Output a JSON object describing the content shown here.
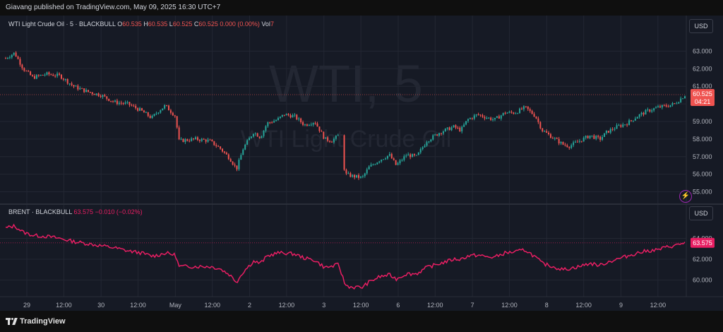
{
  "header": {
    "publish_text": "Giavang published on TradingView.com, May 09, 2025 16:30 UTC+7"
  },
  "footer": {
    "brand": "TradingView"
  },
  "colors": {
    "bg": "#161a25",
    "up": "#26a69a",
    "down": "#ef5350",
    "brent": "#e91e63",
    "grid": "#232733",
    "text": "#b2b5be"
  },
  "top_pane": {
    "legend": {
      "symbol": "WTI Light Crude Oil · 5 · BLACKBULL",
      "o_label": "O",
      "o": "60.535",
      "h_label": "H",
      "h": "60.535",
      "l_label": "L",
      "l": "60.525",
      "c_label": "C",
      "c": "60.525",
      "change": "0.000 (0.00%)",
      "vol_label": "Vol",
      "vol": "7"
    },
    "watermark_big": "WTI, 5",
    "watermark_small": "WTI Light Crude Oil",
    "currency": "USD",
    "price_tag": "60.525",
    "countdown": "04:21",
    "icon": "lightning-icon"
  },
  "bottom_pane": {
    "legend": {
      "symbol": "BRENT · BLACKBULL",
      "value": "63.575",
      "change": "−0.010 (−0.02%)"
    },
    "currency": "USD",
    "price_tag": "63.575"
  },
  "chart_data": [
    {
      "type": "candlestick",
      "title": "WTI Light Crude Oil · 5 · BLACKBULL",
      "ylim": [
        54.5,
        63.9
      ],
      "y_ticks": [
        "55.000",
        "56.000",
        "57.000",
        "58.000",
        "59.000",
        "60.000",
        "61.000",
        "62.000",
        "63.000"
      ],
      "close_path": [
        [
          0,
          62.6
        ],
        [
          0.013,
          62.9
        ],
        [
          0.026,
          62.0
        ],
        [
          0.04,
          61.5
        ],
        [
          0.06,
          61.7
        ],
        [
          0.08,
          61.6
        ],
        [
          0.1,
          61.0
        ],
        [
          0.12,
          60.7
        ],
        [
          0.14,
          60.5
        ],
        [
          0.16,
          60.1
        ],
        [
          0.18,
          60.0
        ],
        [
          0.2,
          59.6
        ],
        [
          0.215,
          59.2
        ],
        [
          0.225,
          59.6
        ],
        [
          0.235,
          59.9
        ],
        [
          0.25,
          59.3
        ],
        [
          0.255,
          57.9
        ],
        [
          0.28,
          58.0
        ],
        [
          0.3,
          57.9
        ],
        [
          0.315,
          57.5
        ],
        [
          0.33,
          56.9
        ],
        [
          0.34,
          56.3
        ],
        [
          0.35,
          57.5
        ],
        [
          0.365,
          58.4
        ],
        [
          0.375,
          58.1
        ],
        [
          0.385,
          58.9
        ],
        [
          0.4,
          59.1
        ],
        [
          0.41,
          59.4
        ],
        [
          0.425,
          59.3
        ],
        [
          0.44,
          58.8
        ],
        [
          0.455,
          59.0
        ],
        [
          0.47,
          58.0
        ],
        [
          0.48,
          57.9
        ],
        [
          0.49,
          58.2
        ],
        [
          0.5,
          56.0
        ],
        [
          0.51,
          55.9
        ],
        [
          0.525,
          55.8
        ],
        [
          0.535,
          56.4
        ],
        [
          0.55,
          56.8
        ],
        [
          0.565,
          57.1
        ],
        [
          0.575,
          56.5
        ],
        [
          0.59,
          57.1
        ],
        [
          0.605,
          57.0
        ],
        [
          0.62,
          57.9
        ],
        [
          0.64,
          58.4
        ],
        [
          0.66,
          58.7
        ],
        [
          0.67,
          58.5
        ],
        [
          0.68,
          59.1
        ],
        [
          0.695,
          59.4
        ],
        [
          0.71,
          59.2
        ],
        [
          0.72,
          59.1
        ],
        [
          0.735,
          59.5
        ],
        [
          0.75,
          59.5
        ],
        [
          0.765,
          59.8
        ],
        [
          0.78,
          59.3
        ],
        [
          0.79,
          58.5
        ],
        [
          0.805,
          58.1
        ],
        [
          0.82,
          57.7
        ],
        [
          0.83,
          57.6
        ],
        [
          0.845,
          57.9
        ],
        [
          0.86,
          58.2
        ],
        [
          0.875,
          58.0
        ],
        [
          0.885,
          58.4
        ],
        [
          0.9,
          58.7
        ],
        [
          0.915,
          58.9
        ],
        [
          0.93,
          59.3
        ],
        [
          0.945,
          59.6
        ],
        [
          0.96,
          59.8
        ],
        [
          0.975,
          59.9
        ],
        [
          0.985,
          60.0
        ],
        [
          1,
          60.5
        ]
      ]
    },
    {
      "type": "line",
      "title": "BRENT · BLACKBULL",
      "ylim": [
        58.8,
        65.6
      ],
      "y_ticks": [
        "60.000",
        "62.000",
        "64.000"
      ],
      "series": [
        {
          "name": "BRENT · BLACKBULL",
          "values": [
            [
              0,
              65.0
            ],
            [
              0.013,
              65.2
            ],
            [
              0.026,
              64.6
            ],
            [
              0.04,
              64.3
            ],
            [
              0.06,
              64.2
            ],
            [
              0.08,
              64.0
            ],
            [
              0.1,
              63.7
            ],
            [
              0.12,
              63.5
            ],
            [
              0.14,
              63.3
            ],
            [
              0.16,
              63.1
            ],
            [
              0.18,
              62.8
            ],
            [
              0.2,
              62.6
            ],
            [
              0.215,
              62.3
            ],
            [
              0.225,
              62.4
            ],
            [
              0.235,
              62.6
            ],
            [
              0.25,
              62.4
            ],
            [
              0.255,
              61.3
            ],
            [
              0.28,
              61.3
            ],
            [
              0.3,
              61.3
            ],
            [
              0.315,
              61.1
            ],
            [
              0.33,
              60.5
            ],
            [
              0.34,
              59.8
            ],
            [
              0.35,
              60.8
            ],
            [
              0.365,
              61.8
            ],
            [
              0.375,
              61.6
            ],
            [
              0.385,
              62.3
            ],
            [
              0.4,
              62.6
            ],
            [
              0.41,
              62.6
            ],
            [
              0.425,
              62.5
            ],
            [
              0.44,
              62.1
            ],
            [
              0.455,
              61.9
            ],
            [
              0.47,
              61.2
            ],
            [
              0.48,
              61.3
            ],
            [
              0.49,
              61.5
            ],
            [
              0.5,
              59.5
            ],
            [
              0.51,
              59.3
            ],
            [
              0.525,
              59.3
            ],
            [
              0.535,
              59.8
            ],
            [
              0.55,
              60.3
            ],
            [
              0.565,
              60.5
            ],
            [
              0.575,
              60.1
            ],
            [
              0.59,
              60.6
            ],
            [
              0.605,
              60.6
            ],
            [
              0.62,
              61.2
            ],
            [
              0.64,
              61.6
            ],
            [
              0.66,
              62.0
            ],
            [
              0.67,
              62.0
            ],
            [
              0.68,
              62.3
            ],
            [
              0.695,
              62.4
            ],
            [
              0.71,
              62.2
            ],
            [
              0.72,
              62.2
            ],
            [
              0.735,
              62.6
            ],
            [
              0.75,
              62.7
            ],
            [
              0.765,
              62.9
            ],
            [
              0.78,
              62.2
            ],
            [
              0.79,
              61.6
            ],
            [
              0.805,
              61.3
            ],
            [
              0.82,
              61.0
            ],
            [
              0.83,
              61.1
            ],
            [
              0.845,
              61.3
            ],
            [
              0.86,
              61.6
            ],
            [
              0.875,
              61.4
            ],
            [
              0.885,
              61.7
            ],
            [
              0.9,
              62.0
            ],
            [
              0.915,
              62.3
            ],
            [
              0.93,
              62.6
            ],
            [
              0.945,
              62.8
            ],
            [
              0.96,
              62.9
            ],
            [
              0.975,
              63.2
            ],
            [
              0.985,
              63.3
            ],
            [
              1,
              63.6
            ]
          ]
        }
      ]
    }
  ],
  "x_axis": {
    "labels": [
      "29",
      "12:00",
      "30",
      "12:00",
      "May",
      "12:00",
      "2",
      "12:00",
      "3",
      "12:00",
      "6",
      "12:00",
      "7",
      "12:00",
      "8",
      "12:00",
      "9",
      "12:00"
    ],
    "positions_frac": [
      0,
      0.107,
      0.215,
      0.322,
      0.43,
      0.537,
      0.645,
      0.752,
      0.86,
      0.967,
      1.075,
      1.182,
      1.29,
      1.397,
      1.505,
      1.612,
      1.72,
      1.827
    ]
  }
}
